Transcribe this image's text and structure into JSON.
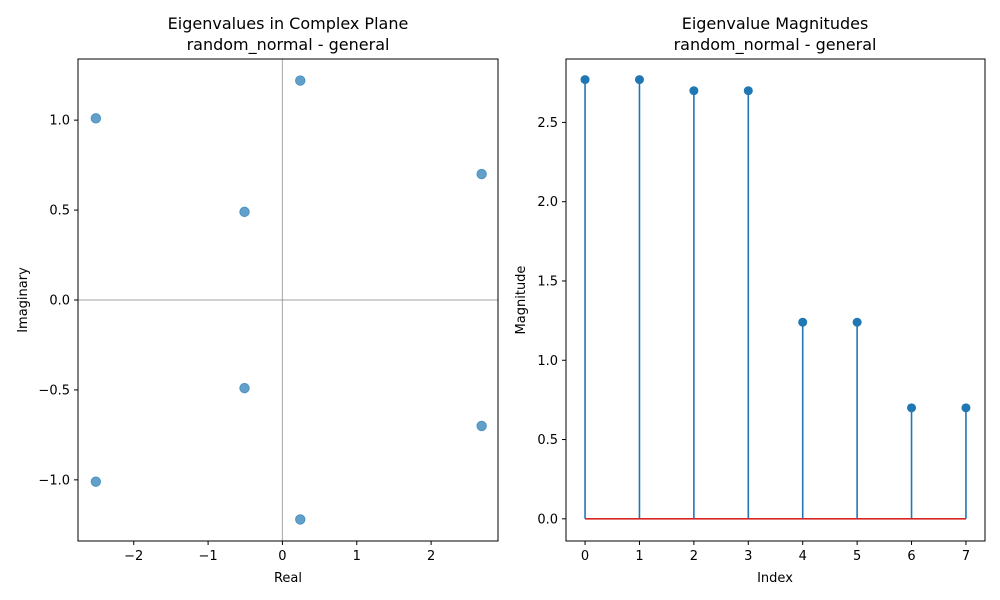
{
  "chart_data": [
    {
      "type": "scatter",
      "title": "Eigenvalues in Complex Plane",
      "subtitle": "random_normal - general",
      "xlabel": "Real",
      "ylabel": "Imaginary",
      "xlim": [
        -2.75,
        2.9
      ],
      "ylim": [
        -1.34,
        1.34
      ],
      "xticks": [
        -2,
        -1,
        0,
        1,
        2
      ],
      "xtick_labels": [
        "−2",
        "−1",
        "0",
        "1",
        "2"
      ],
      "yticks": [
        -1.0,
        -0.5,
        0.0,
        0.5,
        1.0
      ],
      "ytick_labels": [
        "−1.0",
        "−0.5",
        "0.0",
        "0.5",
        "1.0"
      ],
      "grid": false,
      "reference_lines": "x=0 and y=0",
      "points": [
        {
          "x": 0.24,
          "y": 1.22
        },
        {
          "x": 0.24,
          "y": -1.22
        },
        {
          "x": -2.51,
          "y": 1.01
        },
        {
          "x": -2.51,
          "y": -1.01
        },
        {
          "x": 2.68,
          "y": 0.7
        },
        {
          "x": 2.68,
          "y": -0.7
        },
        {
          "x": -0.51,
          "y": 0.49
        },
        {
          "x": -0.51,
          "y": -0.49
        }
      ],
      "color": "#1f77b4"
    },
    {
      "type": "stem",
      "title": "Eigenvalue Magnitudes",
      "subtitle": "random_normal - general",
      "xlabel": "Index",
      "ylabel": "Magnitude",
      "xlim": [
        -0.35,
        7.35
      ],
      "ylim": [
        -0.14,
        2.9
      ],
      "xticks": [
        0,
        1,
        2,
        3,
        4,
        5,
        6,
        7
      ],
      "xtick_labels": [
        "0",
        "1",
        "2",
        "3",
        "4",
        "5",
        "6",
        "7"
      ],
      "yticks": [
        0.0,
        0.5,
        1.0,
        1.5,
        2.0,
        2.5
      ],
      "ytick_labels": [
        "0.0",
        "0.5",
        "1.0",
        "1.5",
        "2.0",
        "2.5"
      ],
      "grid": false,
      "x": [
        0,
        1,
        2,
        3,
        4,
        5,
        6,
        7
      ],
      "values": [
        2.77,
        2.77,
        2.7,
        2.7,
        1.24,
        1.24,
        0.7,
        0.7
      ],
      "color": "#1f77b4",
      "baseline_color": "#d62728"
    }
  ]
}
